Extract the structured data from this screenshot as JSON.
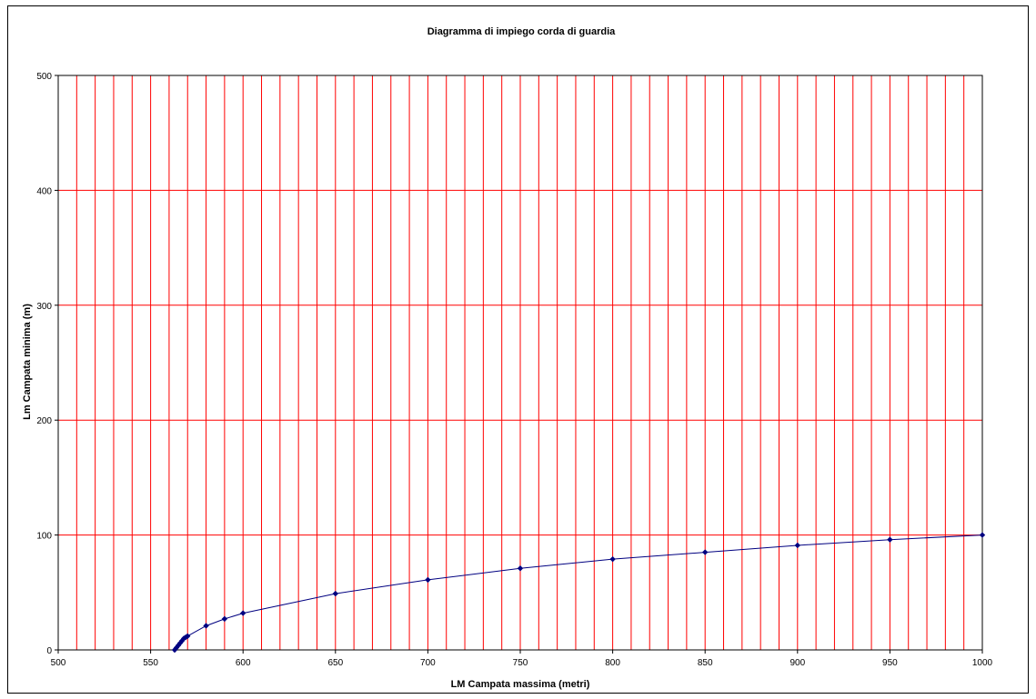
{
  "chart_data": {
    "type": "scatter",
    "title": "Diagramma di impiego corda di guardia",
    "xlabel": "LM Campata massima (metri)",
    "ylabel": "Lm Campata minima (m)",
    "xlim": [
      500,
      1000
    ],
    "ylim": [
      0,
      500
    ],
    "x_ticks": [
      "500",
      "550",
      "600",
      "650",
      "700",
      "750",
      "800",
      "850",
      "900",
      "950",
      "1000"
    ],
    "y_ticks": [
      "0",
      "100",
      "200",
      "300",
      "400",
      "500"
    ],
    "grid": true,
    "grid_color": "#ff0000",
    "series_color": "#000080",
    "series": [
      {
        "x": [
          563,
          564,
          565,
          566,
          567,
          568,
          569,
          570,
          580,
          590,
          600,
          650,
          700,
          750,
          800,
          850,
          900,
          950,
          1000
        ],
        "y": [
          0,
          2,
          4,
          6,
          8,
          10,
          11,
          12,
          21,
          27,
          32,
          49,
          61,
          71,
          79,
          85,
          91,
          96,
          100
        ]
      }
    ]
  }
}
